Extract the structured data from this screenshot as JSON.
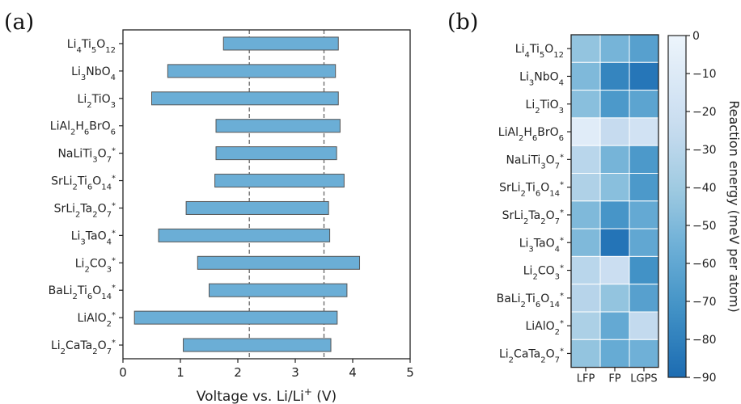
{
  "chart_data": [
    {
      "panel_label": "(a)",
      "type": "bar",
      "orientation": "horizontal",
      "bar_style": "floating",
      "categories": [
        "Li4Ti5O12",
        "Li3NbO4",
        "Li2TiO3",
        "LiAl2H6BrO6",
        "NaLiTi3O7*",
        "SrLi2Ti6O14*",
        "SrLi2Ta2O7*",
        "Li3TaO4*",
        "Li2CO3*",
        "BaLi2Ti6O14*",
        "LiAlO2*",
        "Li2CaTa2O7*"
      ],
      "category_labels": [
        {
          "parts": [
            [
              "Li",
              ""
            ],
            [
              "4",
              "sub"
            ],
            [
              "Ti",
              ""
            ],
            [
              "5",
              "sub"
            ],
            [
              "O",
              ""
            ],
            [
              "12",
              "sub"
            ]
          ]
        },
        {
          "parts": [
            [
              "Li",
              ""
            ],
            [
              "3",
              "sub"
            ],
            [
              "NbO",
              ""
            ],
            [
              "4",
              "sub"
            ]
          ]
        },
        {
          "parts": [
            [
              "Li",
              ""
            ],
            [
              "2",
              "sub"
            ],
            [
              "TiO",
              ""
            ],
            [
              "3",
              "sub"
            ]
          ]
        },
        {
          "parts": [
            [
              "LiAl",
              ""
            ],
            [
              "2",
              "sub"
            ],
            [
              "H",
              ""
            ],
            [
              "6",
              "sub"
            ],
            [
              "BrO",
              ""
            ],
            [
              "6",
              "sub"
            ]
          ]
        },
        {
          "parts": [
            [
              "NaLiTi",
              ""
            ],
            [
              "3",
              "sub"
            ],
            [
              "O",
              ""
            ],
            [
              "7",
              "sub"
            ],
            [
              "*",
              "sup"
            ]
          ]
        },
        {
          "parts": [
            [
              "SrLi",
              ""
            ],
            [
              "2",
              "sub"
            ],
            [
              "Ti",
              ""
            ],
            [
              "6",
              "sub"
            ],
            [
              "O",
              ""
            ],
            [
              "14",
              "sub"
            ],
            [
              "*",
              "sup"
            ]
          ]
        },
        {
          "parts": [
            [
              "SrLi",
              ""
            ],
            [
              "2",
              "sub"
            ],
            [
              "Ta",
              ""
            ],
            [
              "2",
              "sub"
            ],
            [
              "O",
              ""
            ],
            [
              "7",
              "sub"
            ],
            [
              "*",
              "sup"
            ]
          ]
        },
        {
          "parts": [
            [
              "Li",
              ""
            ],
            [
              "3",
              "sub"
            ],
            [
              "TaO",
              ""
            ],
            [
              "4",
              "sub"
            ],
            [
              "*",
              "sup"
            ]
          ]
        },
        {
          "parts": [
            [
              "Li",
              ""
            ],
            [
              "2",
              "sub"
            ],
            [
              "CO",
              ""
            ],
            [
              "3",
              "sub"
            ],
            [
              "*",
              "sup"
            ]
          ]
        },
        {
          "parts": [
            [
              "BaLi",
              ""
            ],
            [
              "2",
              "sub"
            ],
            [
              "Ti",
              ""
            ],
            [
              "6",
              "sub"
            ],
            [
              "O",
              ""
            ],
            [
              "14",
              "sub"
            ],
            [
              "*",
              "sup"
            ]
          ]
        },
        {
          "parts": [
            [
              "LiAlO",
              ""
            ],
            [
              "2",
              "sub"
            ],
            [
              "*",
              "sup"
            ]
          ]
        },
        {
          "parts": [
            [
              "Li",
              ""
            ],
            [
              "2",
              "sub"
            ],
            [
              "CaTa",
              ""
            ],
            [
              "2",
              "sub"
            ],
            [
              "O",
              ""
            ],
            [
              "7",
              "sub"
            ],
            [
              "*",
              "sup"
            ]
          ]
        }
      ],
      "ranges": [
        [
          1.75,
          3.75
        ],
        [
          0.78,
          3.7
        ],
        [
          0.5,
          3.75
        ],
        [
          1.62,
          3.78
        ],
        [
          1.62,
          3.72
        ],
        [
          1.6,
          3.85
        ],
        [
          1.1,
          3.58
        ],
        [
          0.62,
          3.6
        ],
        [
          1.3,
          4.12
        ],
        [
          1.5,
          3.9
        ],
        [
          0.2,
          3.73
        ],
        [
          1.05,
          3.62
        ]
      ],
      "reference_lines_x": [
        2.2,
        3.5
      ],
      "xlabel_parts": [
        [
          "Voltage vs. Li/Li",
          ""
        ],
        [
          "+",
          "sup"
        ],
        [
          " (V)",
          ""
        ]
      ],
      "xlim": [
        0,
        5
      ],
      "xticks": [
        "0",
        "1",
        "2",
        "3",
        "4",
        "5"
      ],
      "bar_color": "#6baed6",
      "bar_edge": "#555555"
    },
    {
      "panel_label": "(b)",
      "type": "heatmap",
      "columns": [
        "LFP",
        "FP",
        "LGPS"
      ],
      "rows": [
        "Li4Ti5O12",
        "Li3NbO4",
        "Li2TiO3",
        "LiAl2H6BrO6",
        "NaLiTi3O7*",
        "SrLi2Ti6O14*",
        "SrLi2Ta2O7*",
        "Li3TaO4*",
        "Li2CO3*",
        "BaLi2Ti6O14*",
        "LiAlO2*",
        "Li2CaTa2O7*"
      ],
      "values": [
        [
          -44,
          -53,
          -64
        ],
        [
          -50,
          -78,
          -85
        ],
        [
          -47,
          -68,
          -62
        ],
        [
          -8,
          -25,
          -18
        ],
        [
          -30,
          -53,
          -68
        ],
        [
          -34,
          -47,
          -68
        ],
        [
          -50,
          -70,
          -59
        ],
        [
          -50,
          -86,
          -60
        ],
        [
          -30,
          -22,
          -72
        ],
        [
          -31,
          -44,
          -64
        ],
        [
          -35,
          -59,
          -26
        ],
        [
          -44,
          -58,
          -55
        ]
      ],
      "colorbar": {
        "min": -90,
        "max": 0,
        "ticks": [
          "0",
          "−10",
          "−20",
          "−30",
          "−40",
          "−50",
          "−60",
          "−70",
          "−80",
          "−90"
        ],
        "label": "Reaction energy (meV per atom)",
        "colormap": "Blues_r"
      }
    }
  ]
}
